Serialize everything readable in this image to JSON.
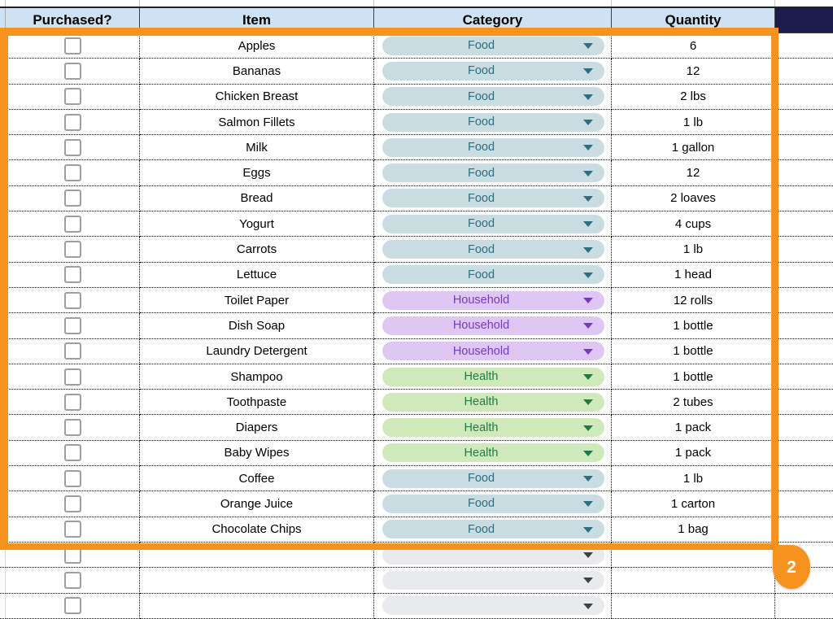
{
  "header": {
    "purchased": "Purchased?",
    "item": "Item",
    "category": "Category",
    "quantity": "Quantity"
  },
  "colors": {
    "header_bg": "#cfe2f3",
    "header_dark_cell_bg": "#1c1b4e",
    "selection_orange": "#f6921e",
    "checkbox_border": "#9e9e9e",
    "categories": {
      "Food": {
        "bg": "#c9dce2",
        "text": "#2f6e7e"
      },
      "Household": {
        "bg": "#dec8f3",
        "text": "#7639c2"
      },
      "Health": {
        "bg": "#cfe9bb",
        "text": "#1e7d45"
      },
      "": {
        "bg": "#e8eaed",
        "text": "#3c4043"
      }
    }
  },
  "rows": [
    {
      "purchased": false,
      "item": "Apples",
      "category": "Food",
      "quantity": "6"
    },
    {
      "purchased": false,
      "item": "Bananas",
      "category": "Food",
      "quantity": "12"
    },
    {
      "purchased": false,
      "item": "Chicken Breast",
      "category": "Food",
      "quantity": "2 lbs"
    },
    {
      "purchased": false,
      "item": "Salmon Fillets",
      "category": "Food",
      "quantity": "1 lb"
    },
    {
      "purchased": false,
      "item": "Milk",
      "category": "Food",
      "quantity": "1 gallon"
    },
    {
      "purchased": false,
      "item": "Eggs",
      "category": "Food",
      "quantity": "12"
    },
    {
      "purchased": false,
      "item": "Bread",
      "category": "Food",
      "quantity": "2 loaves"
    },
    {
      "purchased": false,
      "item": "Yogurt",
      "category": "Food",
      "quantity": "4 cups"
    },
    {
      "purchased": false,
      "item": "Carrots",
      "category": "Food",
      "quantity": "1 lb"
    },
    {
      "purchased": false,
      "item": "Lettuce",
      "category": "Food",
      "quantity": "1 head"
    },
    {
      "purchased": false,
      "item": "Toilet Paper",
      "category": "Household",
      "quantity": "12 rolls"
    },
    {
      "purchased": false,
      "item": "Dish Soap",
      "category": "Household",
      "quantity": "1 bottle"
    },
    {
      "purchased": false,
      "item": "Laundry Detergent",
      "category": "Household",
      "quantity": "1 bottle"
    },
    {
      "purchased": false,
      "item": "Shampoo",
      "category": "Health",
      "quantity": "1 bottle"
    },
    {
      "purchased": false,
      "item": "Toothpaste",
      "category": "Health",
      "quantity": "2 tubes"
    },
    {
      "purchased": false,
      "item": "Diapers",
      "category": "Health",
      "quantity": "1 pack"
    },
    {
      "purchased": false,
      "item": "Baby Wipes",
      "category": "Health",
      "quantity": "1 pack"
    },
    {
      "purchased": false,
      "item": "Coffee",
      "category": "Food",
      "quantity": "1 lb"
    },
    {
      "purchased": false,
      "item": "Orange Juice",
      "category": "Food",
      "quantity": "1 carton"
    },
    {
      "purchased": false,
      "item": "Chocolate Chips",
      "category": "Food",
      "quantity": "1 bag"
    }
  ],
  "empty_rows": 3,
  "selection_badge": {
    "label": "2"
  }
}
